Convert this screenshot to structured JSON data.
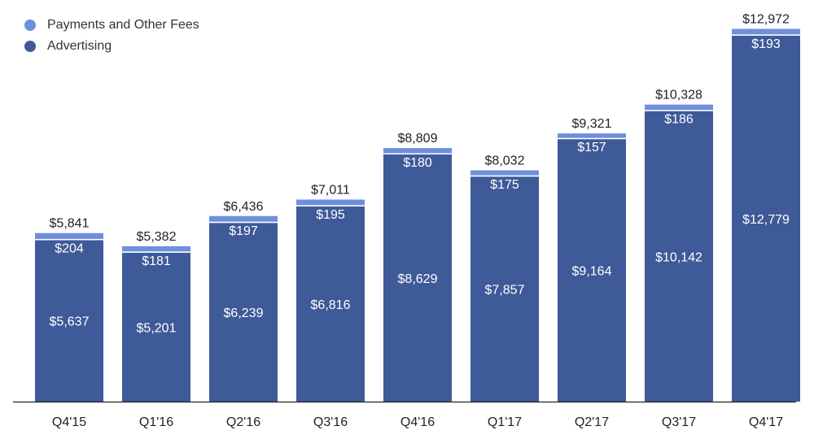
{
  "chart_data": {
    "type": "bar",
    "stacked": true,
    "title": "",
    "xlabel": "",
    "ylabel": "",
    "categories": [
      "Q4'15",
      "Q1'16",
      "Q2'16",
      "Q3'16",
      "Q4'16",
      "Q1'17",
      "Q2'17",
      "Q3'17",
      "Q4'17"
    ],
    "series": [
      {
        "name": "Advertising",
        "color": "#3f5a98",
        "values": [
          5637,
          5201,
          6239,
          6816,
          8629,
          7857,
          9164,
          10142,
          12779
        ]
      },
      {
        "name": "Payments and Other Fees",
        "color": "#6e8fdc",
        "values": [
          204,
          181,
          197,
          195,
          180,
          175,
          157,
          186,
          193
        ]
      }
    ],
    "totals": [
      5841,
      5382,
      6436,
      7011,
      8809,
      8032,
      9321,
      10328,
      12972
    ],
    "series_labels": [
      [
        "$5,637",
        "$5,201",
        "$6,239",
        "$6,816",
        "$8,629",
        "$7,857",
        "$9,164",
        "$10,142",
        "$12,779"
      ],
      [
        "$204",
        "$181",
        "$197",
        "$195",
        "$180",
        "$175",
        "$157",
        "$186",
        "$193"
      ]
    ],
    "total_labels": [
      "$5,841",
      "$5,382",
      "$6,436",
      "$7,011",
      "$8,809",
      "$8,032",
      "$9,321",
      "$10,328",
      "$12,972"
    ],
    "ylim": [
      0,
      12972
    ],
    "grid": false,
    "legend_position": "top-left"
  },
  "legend": [
    {
      "label": "Payments and Other Fees",
      "color": "#6e8fdc"
    },
    {
      "label": "Advertising",
      "color": "#3f5a98"
    }
  ]
}
